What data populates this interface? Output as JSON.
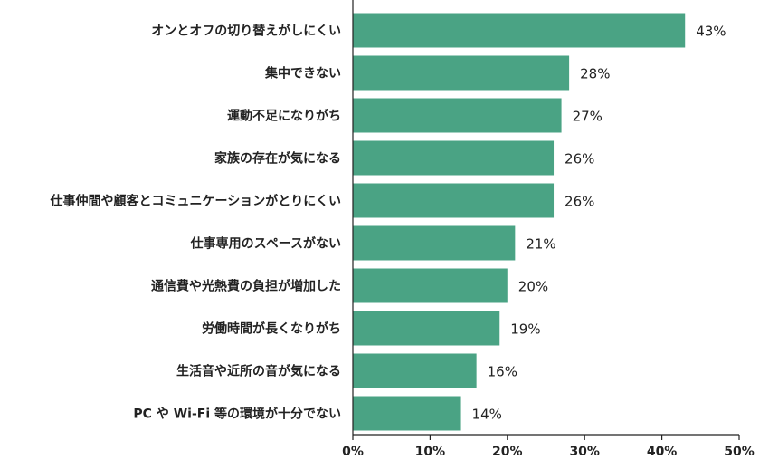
{
  "chart_data": {
    "type": "bar",
    "orientation": "horizontal",
    "categories": [
      "オンとオフの切り替えがしにくい",
      "集中できない",
      "運動不足になりがち",
      "家族の存在が気になる",
      "仕事仲間や顧客とコミュニケーションがとりにくい",
      "仕事専用のスペースがない",
      "通信費や光熱費の負担が増加した",
      "労働時間が長くなりがち",
      "生活音や近所の音が気になる",
      "PC や Wi-Fi 等の環境が十分でない"
    ],
    "values": [
      43,
      28,
      27,
      26,
      26,
      21,
      20,
      19,
      16,
      14
    ],
    "value_labels": [
      "43%",
      "28%",
      "27%",
      "26%",
      "26%",
      "21%",
      "20%",
      "19%",
      "16%",
      "14%"
    ],
    "xlim": [
      0,
      50
    ],
    "x_ticks": [
      "0%",
      "10%",
      "20%",
      "30%",
      "40%",
      "50%"
    ],
    "bar_color": "#4aa384",
    "grid": false,
    "legend": "none"
  }
}
